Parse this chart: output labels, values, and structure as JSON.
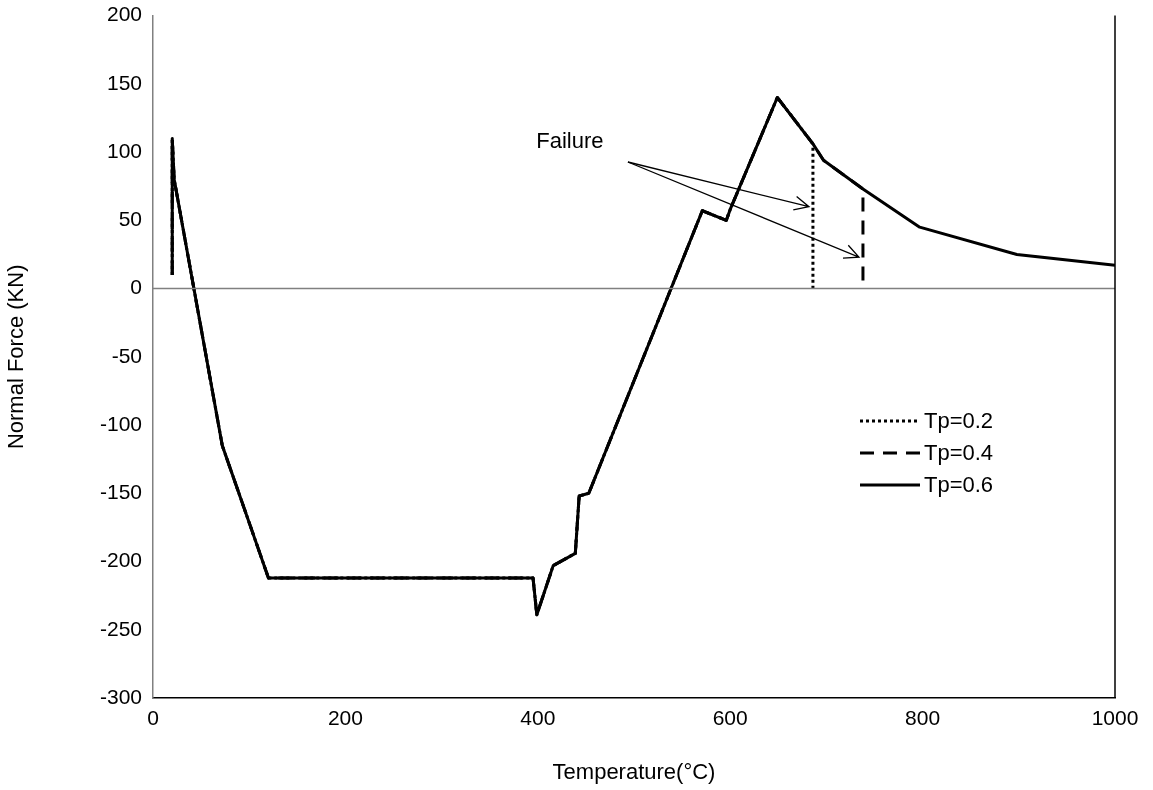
{
  "chart_data": {
    "type": "line",
    "xlabel": "Temperature(°C)",
    "ylabel": "Normal Force (KN)",
    "xlim": [
      0,
      1000
    ],
    "xticks": [
      0,
      200,
      400,
      600,
      800,
      1000
    ],
    "ylim": [
      -300,
      200
    ],
    "yticks": [
      -300,
      -250,
      -200,
      -150,
      -100,
      -50,
      0,
      50,
      100,
      150,
      200
    ],
    "grid": false,
    "legend": "right",
    "marker": "none",
    "ref_lines": [
      {
        "axis": "y",
        "value": 0,
        "color": "#808080"
      }
    ],
    "annotations": [
      {
        "text": "Failure",
        "x": 686,
        "y": 60
      }
    ],
    "series": [
      {
        "name": "Tp=0.6",
        "color": "#000000",
        "line_style": "solid",
        "x": [
          20,
          20,
          22,
          72,
          120,
          395,
          399,
          416,
          439,
          443,
          453,
          571,
          596,
          600,
          649,
          686,
          697,
          738,
          797,
          898,
          1000
        ],
        "values": [
          10,
          110,
          80,
          -115,
          -212,
          -212,
          -239,
          -203,
          -194,
          -152,
          -150,
          57,
          50,
          58,
          140,
          106,
          94,
          73,
          45,
          25,
          17
        ]
      },
      {
        "name": "Tp=0.2",
        "color": "#000000",
        "line_style": "dotted",
        "x": [
          20,
          20,
          22,
          72,
          120,
          395,
          399,
          416,
          439,
          443,
          453,
          571,
          596,
          600,
          649,
          686,
          686
        ],
        "values": [
          10,
          110,
          80,
          -115,
          -212,
          -212,
          -239,
          -203,
          -194,
          -152,
          -150,
          57,
          50,
          58,
          140,
          106,
          0
        ]
      },
      {
        "name": "Tp=0.4",
        "color": "#000000",
        "line_style": "dashed",
        "x": [
          20,
          20,
          22,
          72,
          120,
          395,
          399,
          416,
          439,
          443,
          453,
          571,
          596,
          600,
          649,
          686,
          697,
          738,
          738
        ],
        "values": [
          10,
          110,
          80,
          -115,
          -212,
          -212,
          -239,
          -203,
          -194,
          -152,
          -150,
          57,
          50,
          58,
          140,
          106,
          94,
          73,
          0
        ]
      }
    ]
  }
}
